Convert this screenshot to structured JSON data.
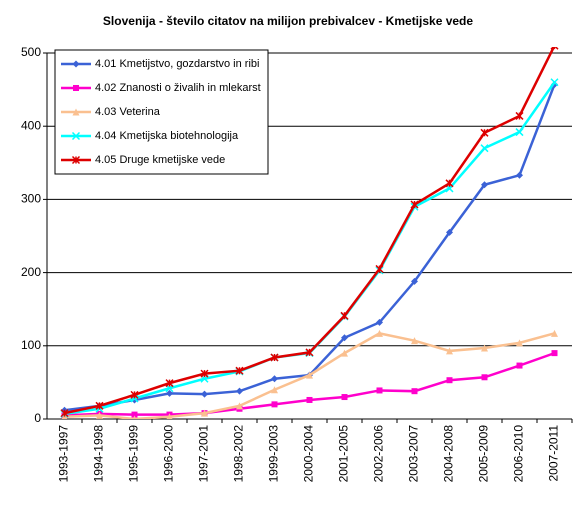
{
  "chart_data": {
    "type": "line",
    "title": "Slovenija - število citatov na milijon prebivalcev - Kmetijske vede",
    "categories": [
      "1993-1997",
      "1994-1998",
      "1995-1999",
      "1996-2000",
      "1997-2001",
      "1998-2002",
      "1999-2003",
      "2000-2004",
      "2001-2005",
      "2002-2006",
      "2003-2007",
      "2004-2008",
      "2005-2009",
      "2006-2010",
      "2007-2011"
    ],
    "series": [
      {
        "name": "4.01 Kmetijstvo, gozdarstvo in ribi",
        "color": "#3b62d6",
        "marker": "diamond",
        "values": [
          12,
          18,
          26,
          35,
          34,
          38,
          55,
          60,
          111,
          132,
          188,
          255,
          320,
          333,
          457
        ]
      },
      {
        "name": "4.02 Znanosti o živalih in mlekarst",
        "color": "#ff00cc",
        "marker": "square",
        "values": [
          5,
          7,
          6,
          6,
          8,
          14,
          20,
          26,
          30,
          39,
          38,
          53,
          57,
          73,
          90
        ]
      },
      {
        "name": "4.03 Veterina",
        "color": "#fac090",
        "marker": "triangle",
        "values": [
          3,
          5,
          0,
          3,
          8,
          18,
          40,
          60,
          90,
          117,
          107,
          93,
          97,
          104,
          117
        ]
      },
      {
        "name": "4.04 Kmetijska biotehnologija",
        "color": "#00ffff",
        "marker": "cross",
        "values": [
          7,
          14,
          28,
          42,
          55,
          65,
          84,
          90,
          140,
          203,
          290,
          315,
          370,
          392,
          460
        ]
      },
      {
        "name": "4.05 Druge kmetijske vede",
        "color": "#dd0000",
        "marker": "star",
        "values": [
          8,
          18,
          33,
          49,
          62,
          66,
          84,
          91,
          141,
          205,
          293,
          322,
          391,
          414,
          510
        ]
      }
    ],
    "ylim": [
      0,
      500
    ],
    "yticks": [
      0,
      100,
      200,
      300,
      400,
      500
    ],
    "grid": true,
    "legend": "top-left"
  }
}
